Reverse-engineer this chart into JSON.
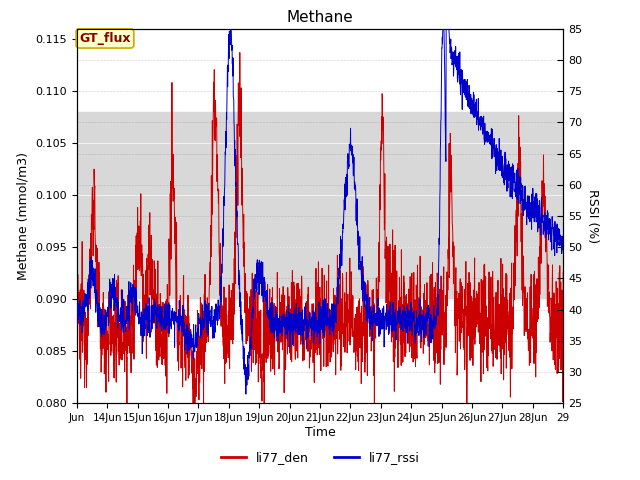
{
  "title": "Methane",
  "xlabel": "Time",
  "ylabel_left": "Methane (mmol/m3)",
  "ylabel_right": "RSSI (%)",
  "ylim_left": [
    0.08,
    0.116
  ],
  "ylim_right": [
    25,
    85
  ],
  "yticks_left": [
    0.08,
    0.085,
    0.09,
    0.095,
    0.1,
    0.105,
    0.11,
    0.115
  ],
  "yticks_right": [
    25,
    30,
    35,
    40,
    45,
    50,
    55,
    60,
    65,
    70,
    75,
    80,
    85
  ],
  "color_den": "#cc0000",
  "color_rssi": "#0000cc",
  "legend_den": "li77_den",
  "legend_rssi": "li77_rssi",
  "band_y_low": 0.09,
  "band_y_high": 0.108,
  "band_color": "#d8d8d8",
  "annotation_text": "GT_flux",
  "n_points": 2000,
  "x_start": 13.0,
  "x_end": 29.0,
  "xtick_positions": [
    13,
    14,
    15,
    16,
    17,
    18,
    19,
    20,
    21,
    22,
    23,
    24,
    25,
    26,
    27,
    28,
    29
  ],
  "xtick_labels": [
    "Jun",
    "14Jun",
    "15Jun",
    "16Jun",
    "17Jun",
    "18Jun",
    "19Jun",
    "20Jun",
    "21Jun",
    "22Jun",
    "23Jun",
    "24Jun",
    "25Jun",
    "26Jun",
    "27Jun",
    "28Jun",
    "29"
  ],
  "figsize": [
    6.4,
    4.8
  ],
  "dpi": 100
}
